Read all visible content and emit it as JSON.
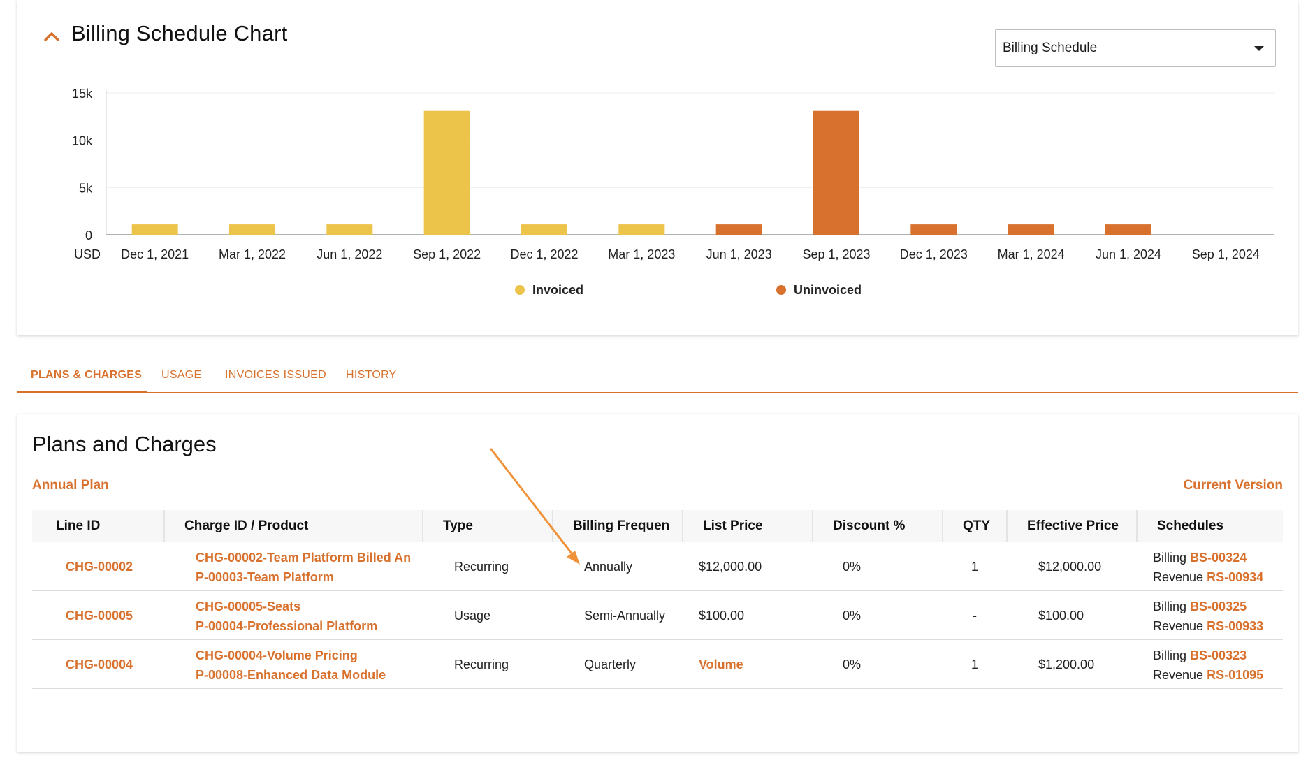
{
  "chart_section": {
    "title": "Billing Schedule Chart",
    "dropdown": {
      "selected": "Billing Schedule"
    }
  },
  "chart_data": {
    "type": "bar",
    "title": "",
    "ylabel": "",
    "xlabel": "",
    "y_unit_label": "USD",
    "ylim": [
      0,
      15000
    ],
    "y_ticks": [
      0,
      5000,
      10000,
      15000
    ],
    "y_tick_labels": [
      "0",
      "5k",
      "10k",
      "15k"
    ],
    "categories": [
      "Dec 1, 2021",
      "Mar 1, 2022",
      "Jun 1, 2022",
      "Sep 1, 2022",
      "Dec 1, 2022",
      "Mar 1, 2023",
      "Jun 1, 2023",
      "Sep 1, 2023",
      "Dec 1, 2023",
      "Mar 1, 2024",
      "Jun 1, 2024",
      "Sep 1, 2024"
    ],
    "series": [
      {
        "name": "Invoiced",
        "color": "#ecc44a",
        "values": [
          1100,
          1100,
          1100,
          13100,
          1100,
          1100,
          0,
          0,
          0,
          0,
          0,
          0
        ]
      },
      {
        "name": "Uninvoiced",
        "color": "#d8712d",
        "values": [
          0,
          0,
          0,
          0,
          0,
          0,
          1100,
          13100,
          1100,
          1100,
          1100,
          0
        ]
      }
    ],
    "grid": true,
    "legend_position": "bottom-center"
  },
  "tabs": [
    {
      "label": "PLANS & CHARGES",
      "active": true
    },
    {
      "label": "USAGE",
      "active": false
    },
    {
      "label": "INVOICES ISSUED",
      "active": false
    },
    {
      "label": "HISTORY",
      "active": false
    }
  ],
  "plans": {
    "title": "Plans and Charges",
    "plan_name": "Annual Plan",
    "version": "Current Version",
    "columns": [
      "Line ID",
      "Charge ID / Product",
      "Type",
      "Billing Frequen",
      "List Price",
      "Discount %",
      "QTY",
      "Effective Price",
      "Schedules"
    ],
    "rows": [
      {
        "line_id": "CHG-00002",
        "charge": "CHG-00002-Team Platform Billed An",
        "product": "P-00003-Team Platform",
        "type": "Recurring",
        "frequency": "Annually",
        "list_price": "$12,000.00",
        "discount": "0%",
        "qty": "1",
        "effective_price": "$12,000.00",
        "billing_label": "Billing",
        "billing_id": "BS-00324",
        "revenue_label": "Revenue",
        "revenue_id": "RS-00934"
      },
      {
        "line_id": "CHG-00005",
        "charge": "CHG-00005-Seats",
        "product": "P-00004-Professional Platform",
        "type": "Usage",
        "frequency": "Semi-Annually",
        "list_price": "$100.00",
        "discount": "0%",
        "qty": "-",
        "effective_price": "$100.00",
        "billing_label": "Billing",
        "billing_id": "BS-00325",
        "revenue_label": "Revenue",
        "revenue_id": "RS-00933"
      },
      {
        "line_id": "CHG-00004",
        "charge": "CHG-00004-Volume Pricing",
        "product": "P-00008-Enhanced Data Module",
        "type": "Recurring",
        "frequency": "Quarterly",
        "list_price": "Volume",
        "discount": "0%",
        "qty": "1",
        "effective_price": "$1,200.00",
        "billing_label": "Billing",
        "billing_id": "BS-00323",
        "revenue_label": "Revenue",
        "revenue_id": "RS-01095"
      }
    ]
  },
  "colors": {
    "accent": "#d8712d",
    "invoiced": "#ecc44a",
    "uninvoiced": "#d8712d"
  }
}
